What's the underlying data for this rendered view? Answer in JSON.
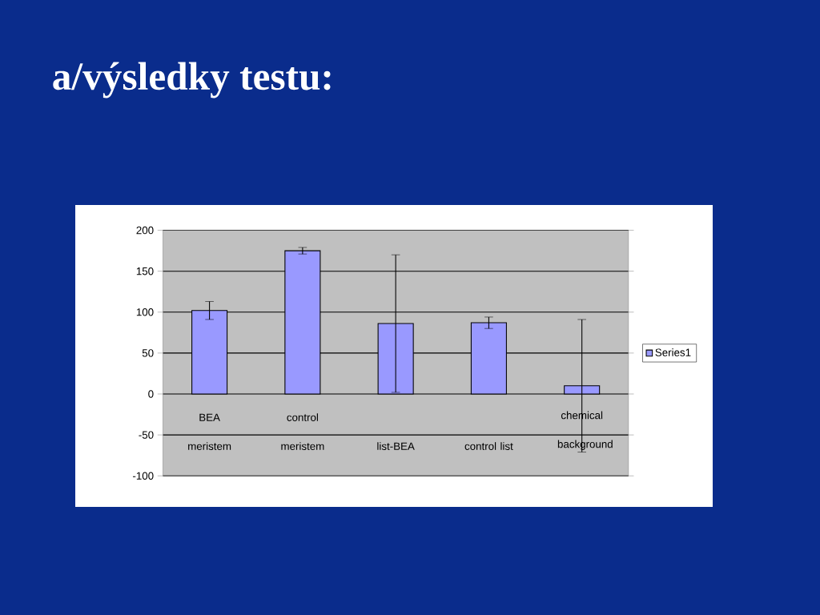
{
  "chart_data": {
    "type": "bar",
    "title": "a/výsledky testu:",
    "categories": [
      "BEA meristem",
      "control meristem",
      "list-BEA",
      "control list",
      "chemical background"
    ],
    "series": [
      {
        "name": "Series1",
        "color": "#9999ff",
        "values": [
          102,
          175,
          86,
          87,
          10
        ],
        "errors": [
          11,
          4,
          84,
          7,
          81
        ]
      }
    ],
    "ylim": [
      -100,
      200
    ],
    "yticks": [
      -100,
      -50,
      0,
      50,
      100,
      150,
      200
    ],
    "grid": "y",
    "legend": "right"
  }
}
